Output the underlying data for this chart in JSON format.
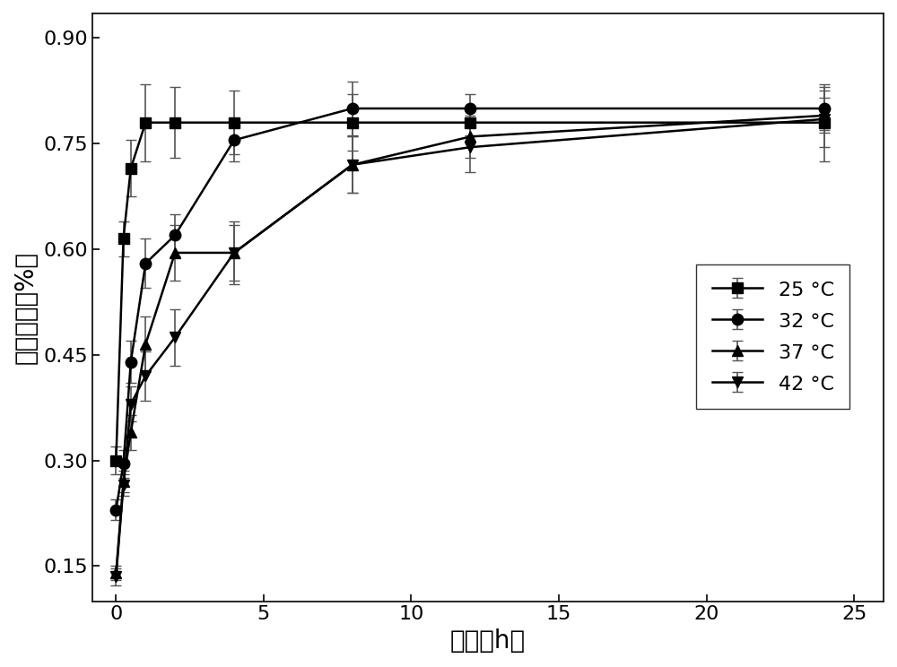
{
  "title": "",
  "xlabel": "时间（h）",
  "ylabel": "氯释放量（%）",
  "xlim": [
    -0.8,
    26
  ],
  "ylim": [
    0.1,
    0.935
  ],
  "yticks": [
    0.15,
    0.3,
    0.45,
    0.6,
    0.75,
    0.9
  ],
  "xticks": [
    0,
    5,
    10,
    15,
    20,
    25
  ],
  "series": [
    {
      "label": "25 °C",
      "marker": "s",
      "x": [
        0,
        0.25,
        0.5,
        1,
        2,
        4,
        8,
        12,
        24
      ],
      "y": [
        0.3,
        0.615,
        0.715,
        0.78,
        0.78,
        0.78,
        0.78,
        0.78,
        0.78
      ],
      "yerr": [
        0.02,
        0.025,
        0.04,
        0.055,
        0.05,
        0.045,
        0.04,
        0.018,
        0.055
      ]
    },
    {
      "label": "32 °C",
      "marker": "o",
      "x": [
        0,
        0.25,
        0.5,
        1,
        2,
        4,
        8,
        12,
        24
      ],
      "y": [
        0.23,
        0.295,
        0.44,
        0.58,
        0.62,
        0.755,
        0.8,
        0.8,
        0.8
      ],
      "yerr": [
        0.015,
        0.02,
        0.03,
        0.035,
        0.03,
        0.03,
        0.038,
        0.02,
        0.03
      ]
    },
    {
      "label": "37 °C",
      "marker": "^",
      "x": [
        0,
        0.25,
        0.5,
        1,
        2,
        4,
        8,
        12,
        24
      ],
      "y": [
        0.14,
        0.27,
        0.34,
        0.465,
        0.595,
        0.595,
        0.72,
        0.76,
        0.79
      ],
      "yerr": [
        0.01,
        0.015,
        0.025,
        0.04,
        0.04,
        0.04,
        0.04,
        0.03,
        0.025
      ]
    },
    {
      "label": "42 °C",
      "marker": "v",
      "x": [
        0,
        0.25,
        0.5,
        1,
        2,
        4,
        8,
        12,
        24
      ],
      "y": [
        0.135,
        0.265,
        0.38,
        0.42,
        0.475,
        0.595,
        0.72,
        0.745,
        0.785
      ],
      "yerr": [
        0.012,
        0.015,
        0.025,
        0.035,
        0.04,
        0.045,
        0.04,
        0.035,
        0.04
      ]
    }
  ],
  "color": "#000000",
  "markersize": 9,
  "linewidth": 1.8,
  "capsize": 4,
  "elinewidth": 1.2,
  "font_size_label": 20,
  "font_size_tick": 16,
  "font_size_legend": 16
}
